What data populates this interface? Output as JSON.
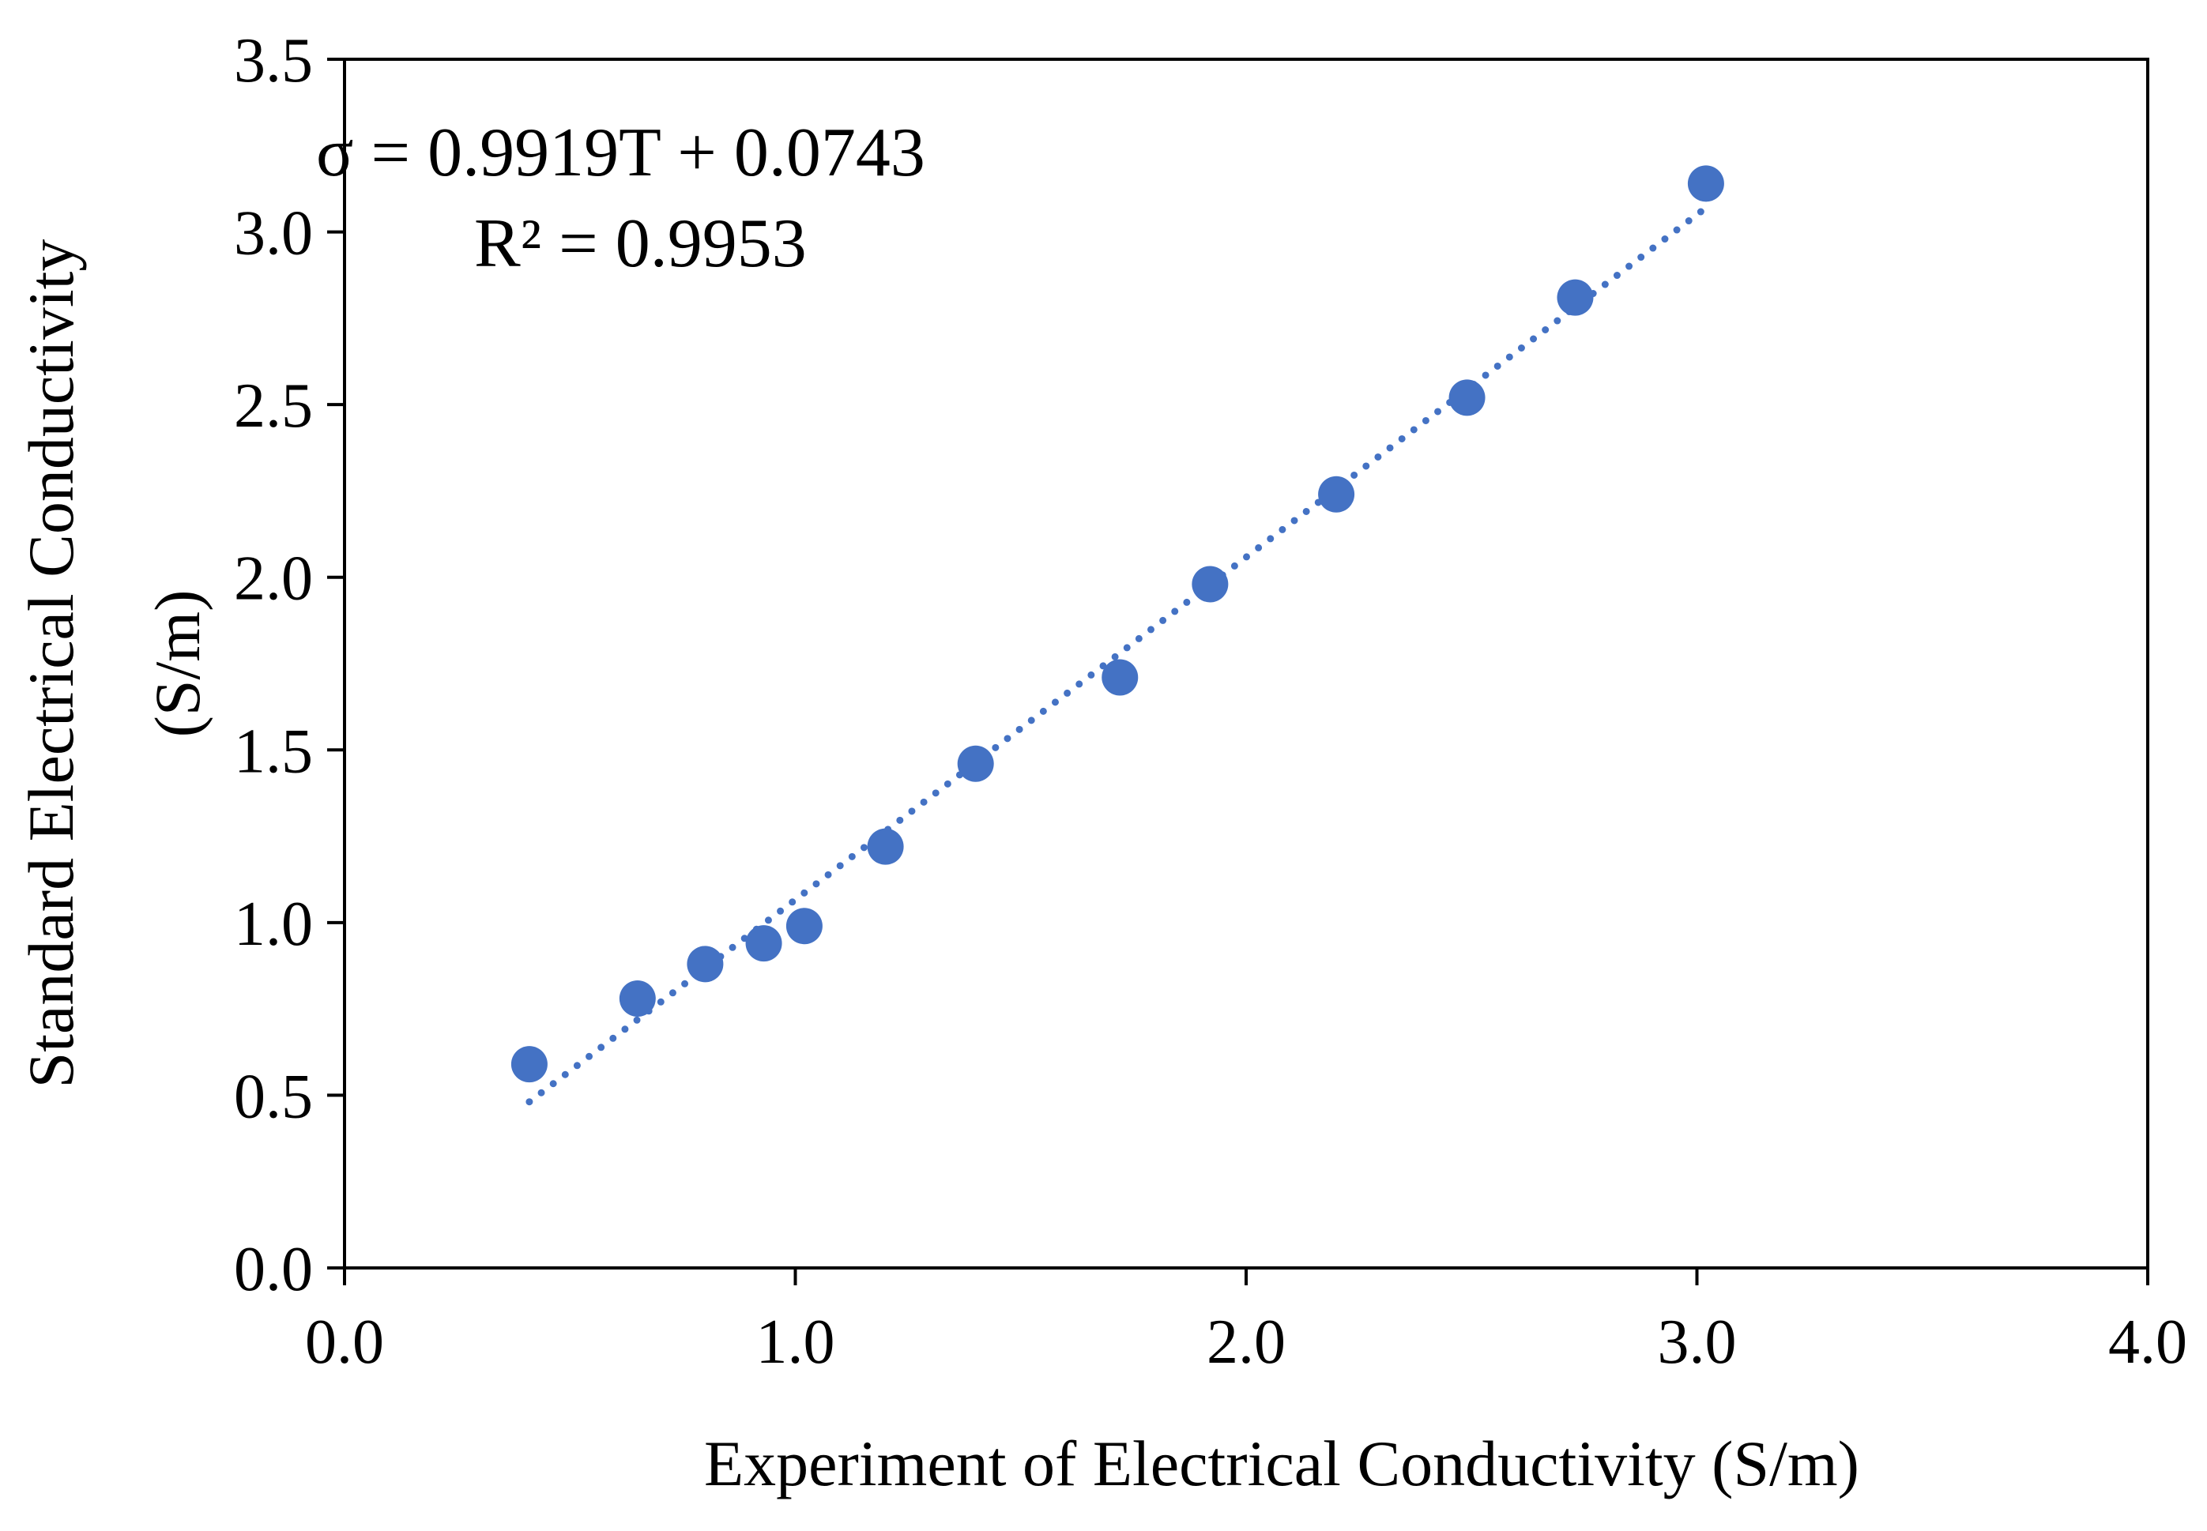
{
  "chart_data": {
    "type": "scatter",
    "title": "",
    "xlabel": "Experiment of Electrical Conductivity (S/m)",
    "ylabel_line1": "Standard  Electrical Conductivity",
    "ylabel_line2": "(S/m)",
    "xlim": [
      0,
      4
    ],
    "ylim": [
      0,
      3.5
    ],
    "xticks": [
      0,
      1,
      2,
      3,
      4
    ],
    "xtick_labels": [
      "0.0",
      "1.0",
      "2.0",
      "3.0",
      "4.0"
    ],
    "yticks": [
      0,
      0.5,
      1,
      1.5,
      2,
      2.5,
      3,
      3.5
    ],
    "ytick_labels": [
      "0.0",
      "0.5",
      "1.0",
      "1.5",
      "2.0",
      "2.5",
      "3.0",
      "3.5"
    ],
    "series": [
      {
        "name": "Electrical Conductivity",
        "color": "#4472C4",
        "x": [
          0.41,
          0.65,
          0.8,
          0.93,
          1.02,
          1.2,
          1.4,
          1.72,
          1.92,
          2.2,
          2.49,
          2.73,
          3.02
        ],
        "y": [
          0.59,
          0.78,
          0.88,
          0.94,
          0.99,
          1.22,
          1.46,
          1.71,
          1.98,
          2.24,
          2.52,
          2.81,
          3.14
        ]
      }
    ],
    "trendline": {
      "type": "linear",
      "style": "dotted",
      "color": "#4472C4",
      "slope": 0.9919,
      "intercept": 0.0743,
      "x_range": [
        0.41,
        3.02
      ],
      "equation": "σ = 0.9919T + 0.0743",
      "r_squared": "R² = 0.9953"
    }
  }
}
